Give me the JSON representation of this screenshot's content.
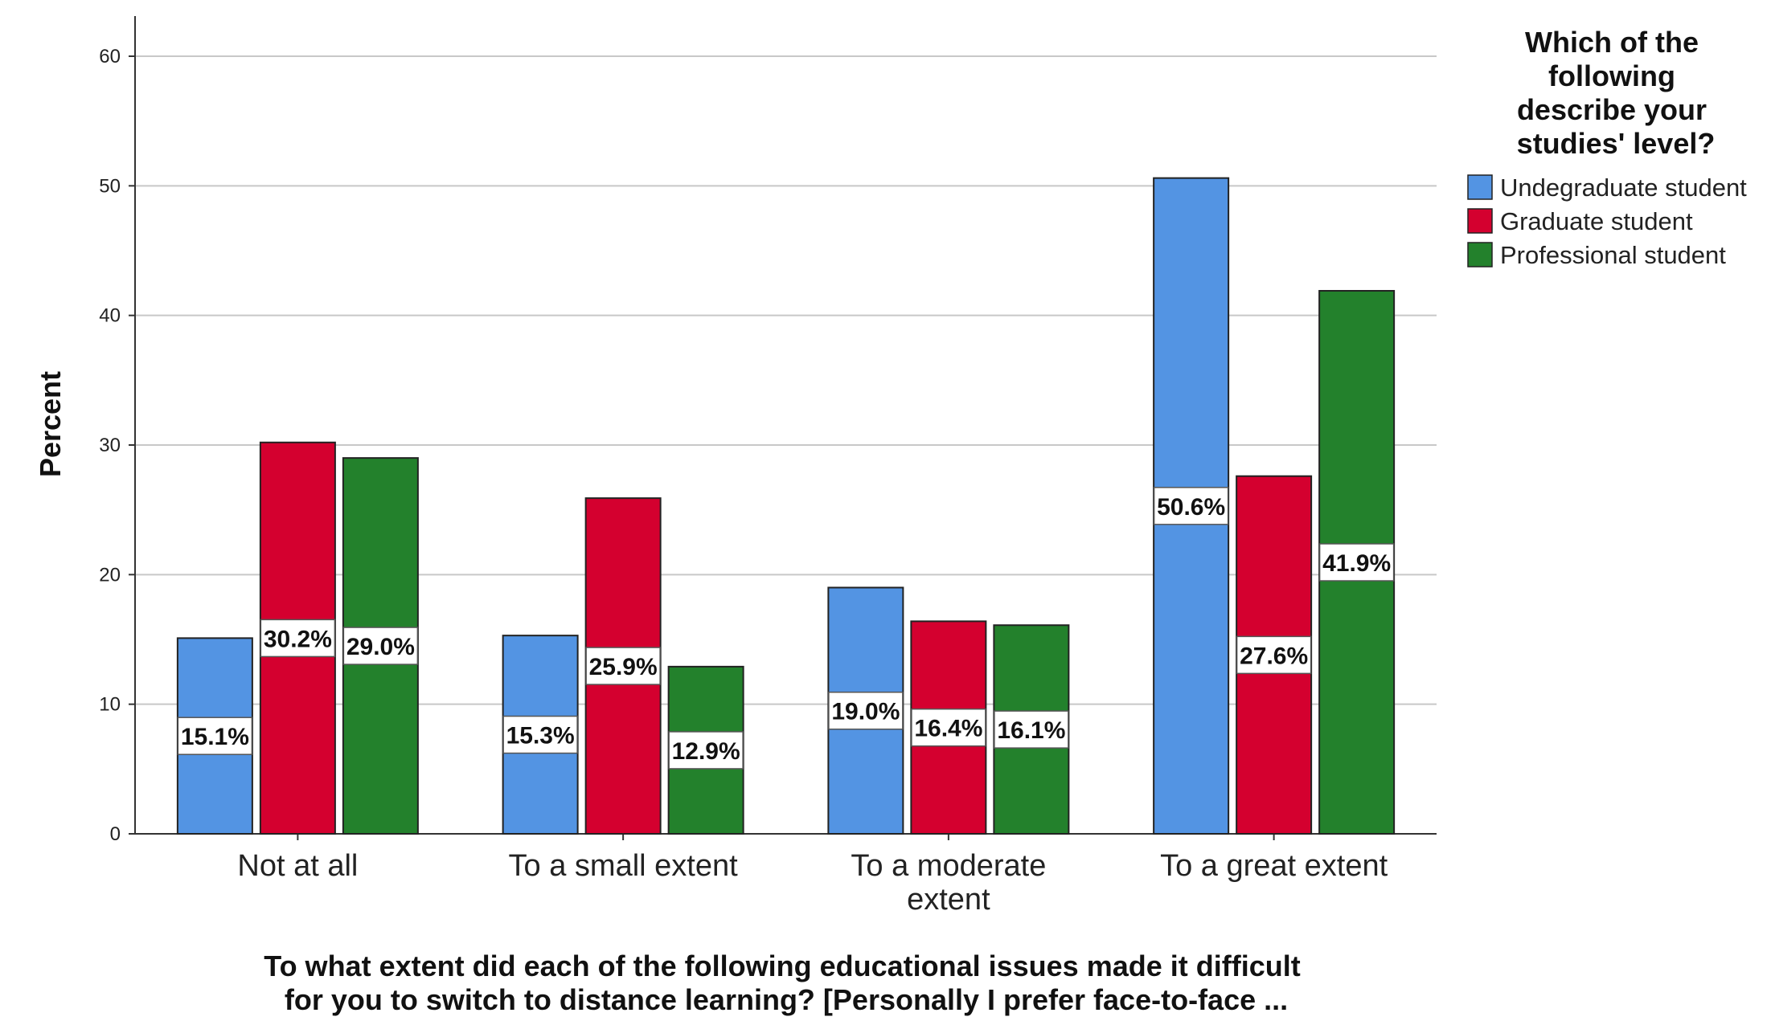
{
  "chart_data": {
    "type": "bar",
    "ylabel": "Percent",
    "xlabel_lines": [
      "To what extent did each of the following educational issues made it difficult",
      "for you to switch to distance learning?  [Personally I prefer face-to-face ..."
    ],
    "categories": [
      [
        "Not at all"
      ],
      [
        "To a small extent"
      ],
      [
        "To a moderate",
        "extent"
      ],
      [
        "To a great extent"
      ]
    ],
    "ylim": [
      0,
      60
    ],
    "yticks": [
      0,
      10,
      20,
      30,
      40,
      50,
      60
    ],
    "grid": true,
    "legend": {
      "title_lines": [
        "Which of the",
        "following",
        "describe your",
        "studies' level?"
      ],
      "position": "top-right"
    },
    "series": [
      {
        "name": "Undegraduate student",
        "color": "#5394e3",
        "values": [
          15.1,
          15.3,
          19.0,
          50.6
        ],
        "labels": [
          "15.1%",
          "15.3%",
          "19.0%",
          "50.6%"
        ]
      },
      {
        "name": "Graduate student",
        "color": "#d4002f",
        "values": [
          30.2,
          25.9,
          16.4,
          27.6
        ],
        "labels": [
          "30.2%",
          "25.9%",
          "16.4%",
          "27.6%"
        ]
      },
      {
        "name": "Professional student",
        "color": "#23812c",
        "values": [
          29.0,
          12.9,
          16.1,
          41.9
        ],
        "labels": [
          "29.0%",
          "12.9%",
          "16.1%",
          "41.9%"
        ]
      }
    ]
  }
}
